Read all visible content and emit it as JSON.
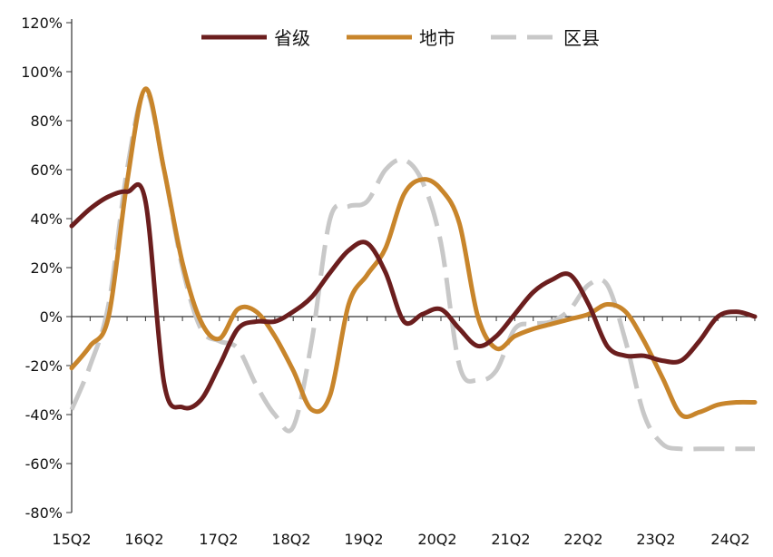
{
  "chart_data": {
    "type": "line",
    "title": "",
    "xlabel": "",
    "ylabel": "",
    "ylim": [
      -80,
      120
    ],
    "y_ticks": [
      "120%",
      "100%",
      "80%",
      "60%",
      "40%",
      "20%",
      "0%",
      "-20%",
      "-40%",
      "-60%",
      "-80%"
    ],
    "x_ticks": [
      "15Q2",
      "16Q2",
      "17Q2",
      "18Q2",
      "19Q2",
      "20Q2",
      "21Q2",
      "22Q2",
      "23Q2",
      "24Q2"
    ],
    "categories": [
      "15Q2",
      "15Q3",
      "15Q4",
      "16Q1",
      "16Q2",
      "16Q3",
      "16Q4",
      "17Q1",
      "17Q2",
      "17Q3",
      "17Q4",
      "18Q1",
      "18Q2",
      "18Q3",
      "18Q4",
      "19Q1",
      "19Q2",
      "19Q3",
      "19Q4",
      "20Q1",
      "20Q2",
      "20Q3",
      "20Q4",
      "21Q1",
      "21Q2",
      "21Q3",
      "21Q4",
      "22Q1",
      "22Q2",
      "22Q3",
      "22Q4",
      "23Q1",
      "23Q2",
      "23Q3",
      "23Q4",
      "24Q1",
      "24Q2",
      "24Q3"
    ],
    "legend_position": "top-center",
    "grid": false,
    "series": [
      {
        "name": "省级",
        "color": "#6b1e1e",
        "dash": "solid",
        "values": [
          37,
          44,
          49,
          51,
          47,
          -27,
          -37,
          -34,
          -20,
          -5,
          -2,
          -2,
          2,
          8,
          18,
          27,
          30,
          18,
          -2,
          1,
          3,
          -5,
          -12,
          -8,
          1,
          10,
          15,
          17,
          5,
          -12,
          -16,
          -16,
          -18,
          -18,
          -10,
          0,
          2,
          0
        ]
      },
      {
        "name": "地市",
        "color": "#c8852b",
        "dash": "solid",
        "values": [
          -21,
          -12,
          0,
          55,
          93,
          60,
          22,
          -2,
          -9,
          3,
          2,
          -8,
          -22,
          -38,
          -32,
          5,
          17,
          28,
          50,
          56,
          52,
          38,
          0,
          -13,
          -8,
          -5,
          -3,
          -1,
          1,
          5,
          2,
          -10,
          -25,
          -40,
          -39,
          -36,
          -35,
          -35
        ]
      },
      {
        "name": "区县",
        "color": "#c8c8c8",
        "dash": "dashed",
        "values": [
          -38,
          -20,
          5,
          60,
          92,
          60,
          20,
          -5,
          -10,
          -13,
          -28,
          -40,
          -45,
          -10,
          40,
          45,
          47,
          60,
          64,
          55,
          30,
          -20,
          -26,
          -22,
          -5,
          -3,
          -2,
          3,
          13,
          13,
          -10,
          -40,
          -52,
          -54,
          -54,
          -54,
          -54,
          -54
        ]
      }
    ]
  }
}
